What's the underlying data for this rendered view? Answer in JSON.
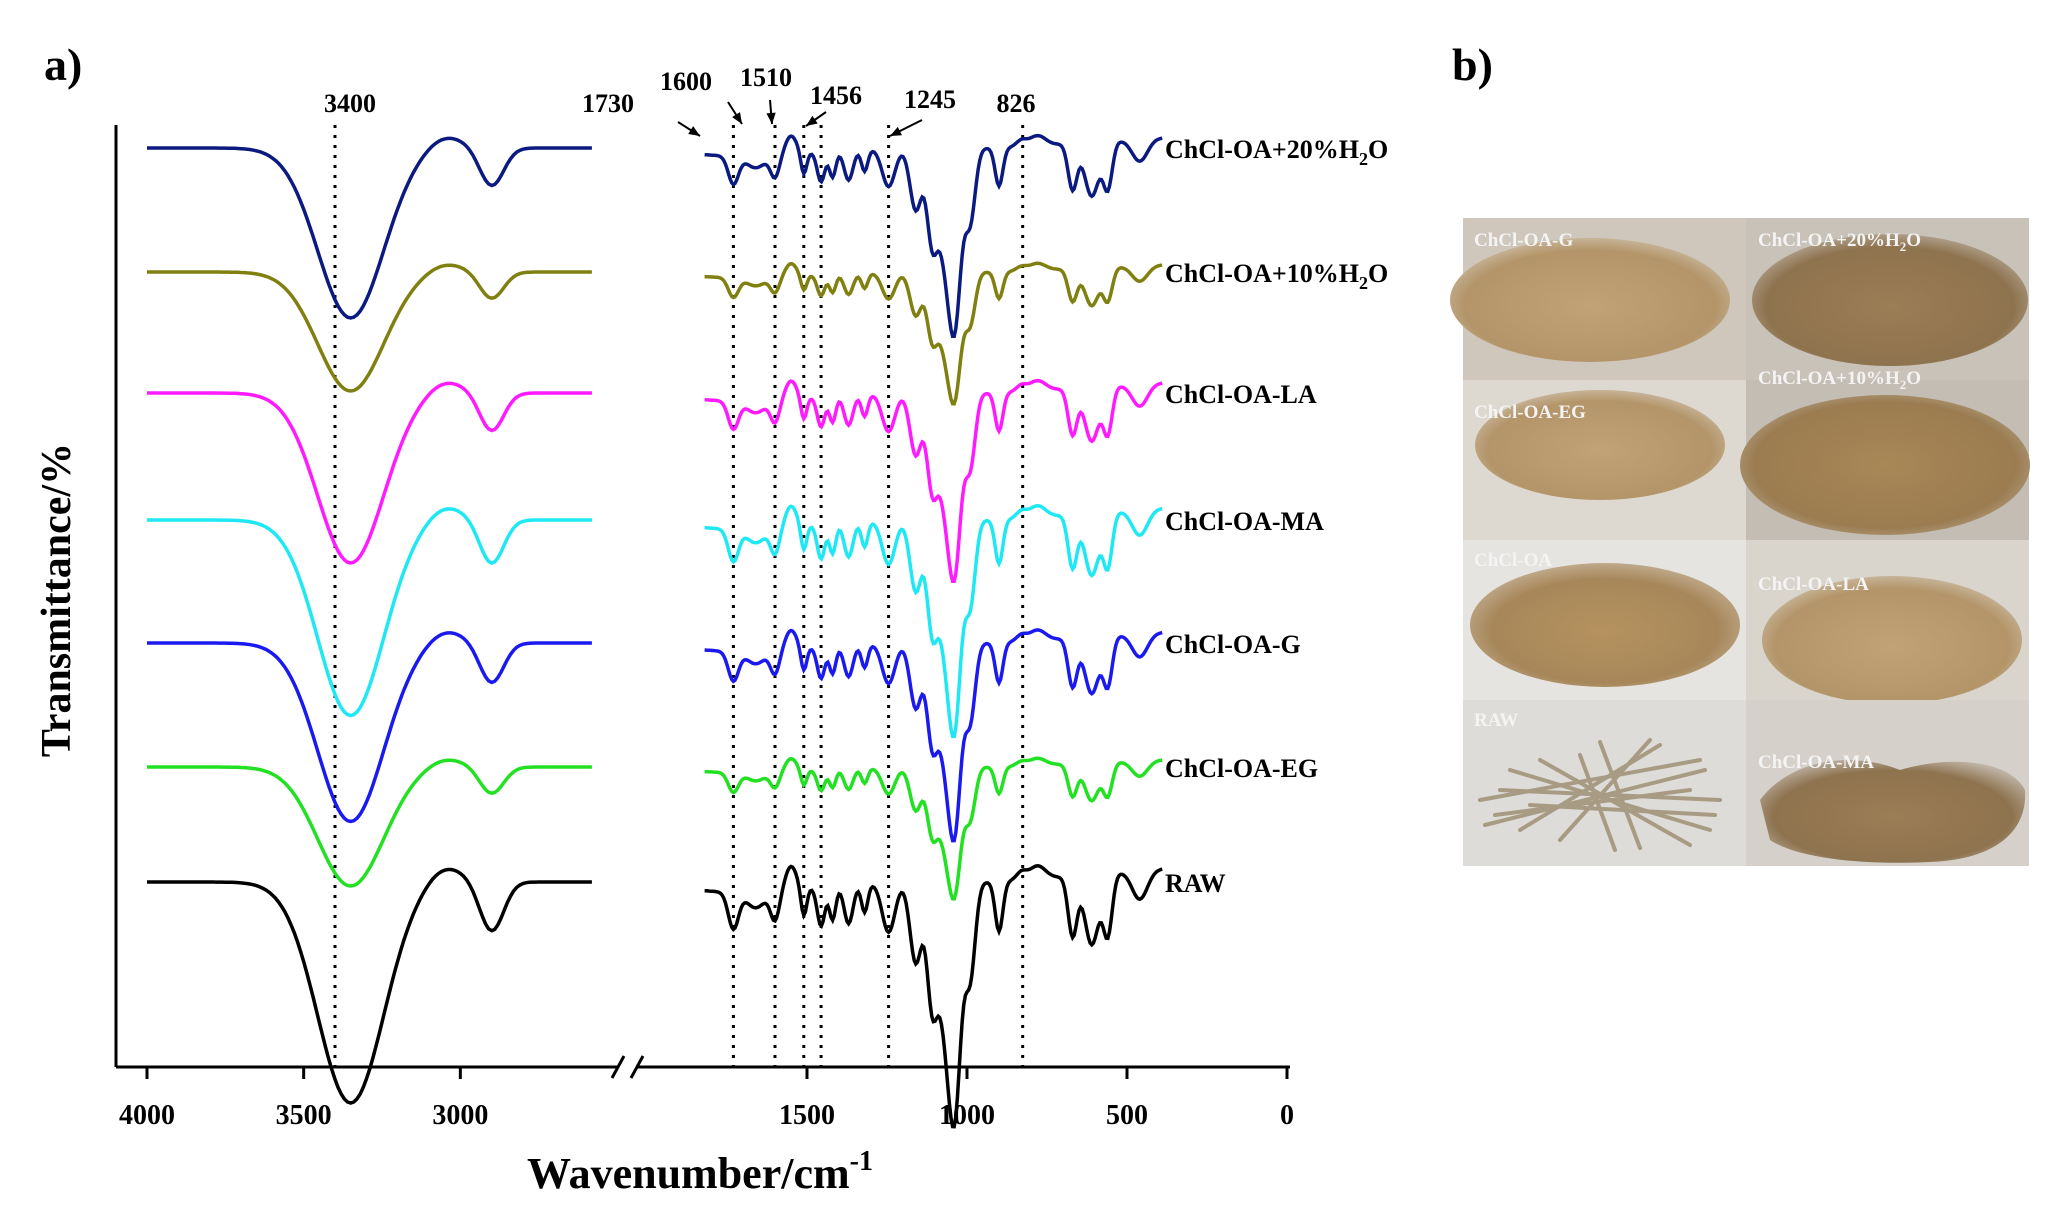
{
  "panel_labels": {
    "a": "a)",
    "b": "b)"
  },
  "chart_data": {
    "type": "line",
    "xlabel": "Wavenumber/cm",
    "xlabel_sup": "-1",
    "ylabel": "Transmittance/%",
    "x_reversed": true,
    "x_axis_break": [
      2500,
      2000
    ],
    "x_ticks": [
      "4000",
      "3500",
      "3000",
      "1500",
      "1000",
      "500",
      "0"
    ],
    "x_tick_values": [
      4000,
      3500,
      3000,
      1500,
      1000,
      500,
      0
    ],
    "grid": false,
    "legend": "series names printed at right end of each trace",
    "reference_lines": [
      {
        "label": "3400",
        "x": 3400
      },
      {
        "label": "1730",
        "x": 1730
      },
      {
        "label": "1600",
        "x": 1600
      },
      {
        "label": "1510",
        "x": 1510
      },
      {
        "label": "1456",
        "x": 1456
      },
      {
        "label": "1245",
        "x": 1245
      },
      {
        "label": "826",
        "x": 826
      }
    ],
    "series": [
      {
        "name": "ChCl-OA+20%H",
        "name_sub": "2",
        "name_end": "O",
        "color": "#0b1a80",
        "amplitude": 1.0
      },
      {
        "name": "ChCl-OA+10%H",
        "name_sub": "2",
        "name_end": "O",
        "color": "#808010",
        "amplitude": 0.7
      },
      {
        "name": "ChCl-OA-LA",
        "color": "#ff1aff",
        "amplitude": 1.0
      },
      {
        "name": "ChCl-OA-MA",
        "color": "#1fe8f5",
        "amplitude": 1.15
      },
      {
        "name": "ChCl-OA-G",
        "color": "#1a1af0",
        "amplitude": 1.05
      },
      {
        "name": "ChCl-OA-EG",
        "color": "#22e022",
        "amplitude": 0.7
      },
      {
        "name": "RAW",
        "color": "#000000",
        "amplitude": 1.3
      }
    ]
  },
  "photo_panel": {
    "tiles": [
      {
        "label": "ChCl-OA-G"
      },
      {
        "label": "ChCl-OA+20%H",
        "label_sub": "2",
        "label_end": "O"
      },
      {
        "label": "ChCl-OA-EG"
      },
      {
        "label": "ChCl-OA+10%H",
        "label_sub": "2",
        "label_end": "O"
      },
      {
        "label": "ChCl-OA"
      },
      {
        "label": "ChCl-OA-LA"
      },
      {
        "label": "RAW"
      },
      {
        "label": "ChCl-OA-MA"
      }
    ]
  }
}
